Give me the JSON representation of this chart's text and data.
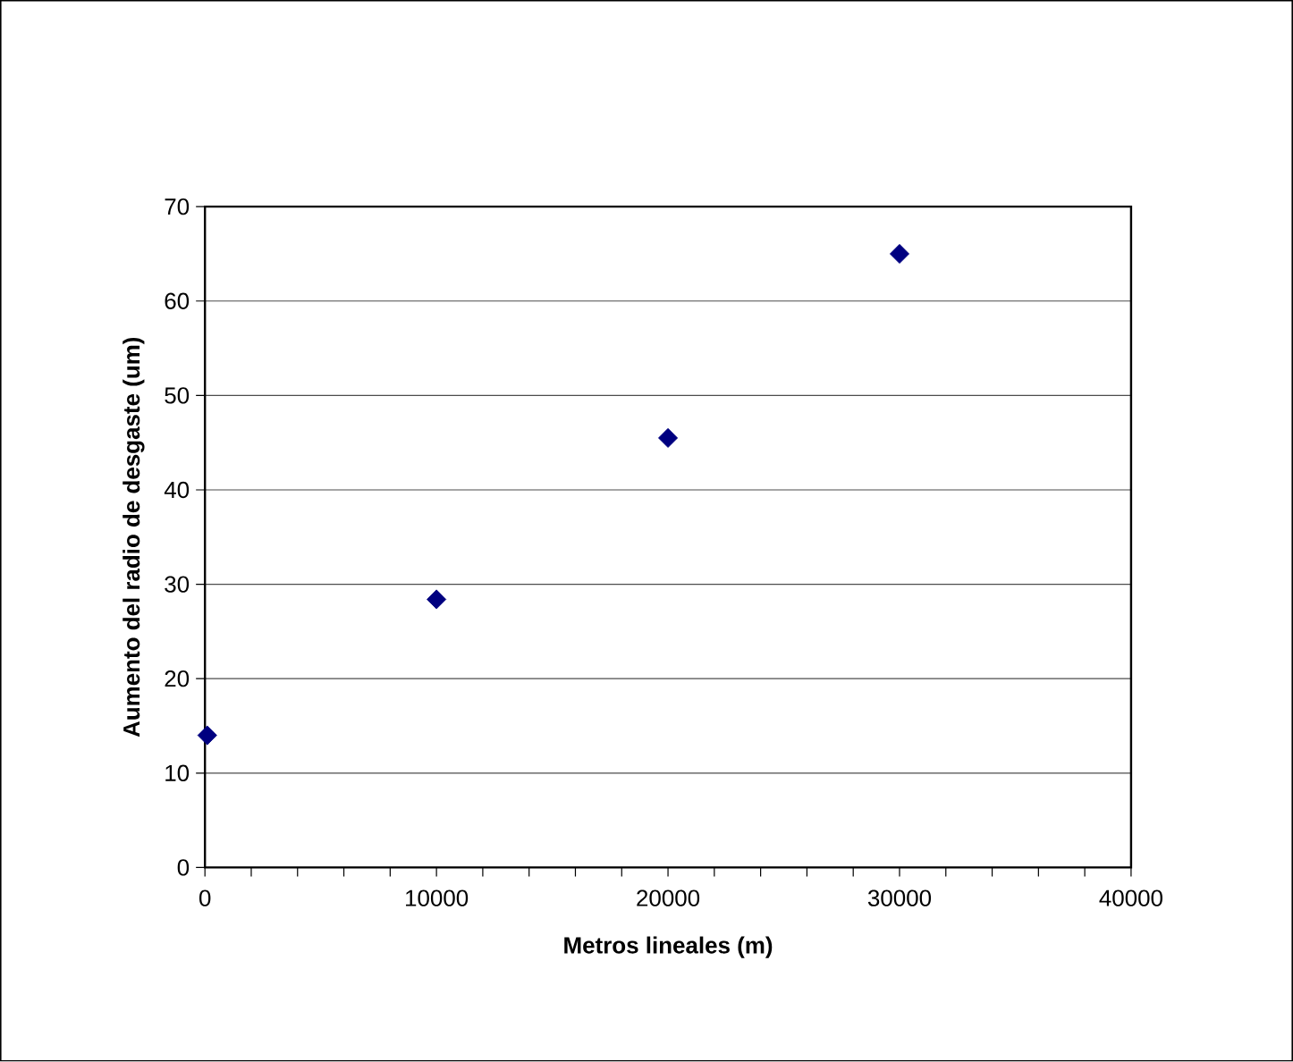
{
  "chart_data": {
    "type": "scatter",
    "xlabel": "Metros lineales (m)",
    "ylabel": "Aumento del radio de desgaste (um)",
    "x": [
      100,
      10000,
      20000,
      30000
    ],
    "series": [
      {
        "color": "#000080",
        "values": [
          14,
          28.4,
          45.5,
          65
        ]
      }
    ],
    "marker": "diamond",
    "grid": "y",
    "xlim": [
      0,
      40000
    ],
    "ylim": [
      0,
      70
    ],
    "xticks": [
      0,
      {
        "value": 2000,
        "label": null
      },
      {
        "value": 4000,
        "label": null
      },
      {
        "value": 6000,
        "label": null
      },
      {
        "value": 8000,
        "label": null
      },
      10000,
      {
        "value": 12000,
        "label": null
      },
      {
        "value": 14000,
        "label": null
      },
      {
        "value": 16000,
        "label": null
      },
      {
        "value": 18000,
        "label": null
      },
      20000,
      {
        "value": 22000,
        "label": null
      },
      {
        "value": 24000,
        "label": null
      },
      {
        "value": 26000,
        "label": null
      },
      {
        "value": 28000,
        "label": null
      },
      30000,
      {
        "value": 32000,
        "label": null
      },
      {
        "value": 34000,
        "label": null
      },
      {
        "value": 36000,
        "label": null
      },
      {
        "value": 38000,
        "label": null
      },
      40000
    ],
    "yticks": [
      0,
      10,
      20,
      30,
      40,
      50,
      60,
      70
    ]
  }
}
